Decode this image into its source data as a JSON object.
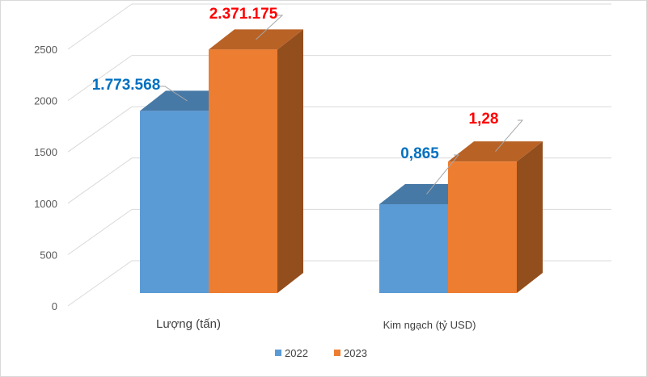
{
  "chart_data": {
    "type": "bar",
    "style": "3d-clustered-column",
    "title": "",
    "categories": [
      "Lượng (tấn)",
      "Kim ngạch (tỷ USD)"
    ],
    "series": [
      {
        "name": "2022",
        "color": "#5B9BD5",
        "values": [
          1773.568,
          0.865
        ],
        "plot_values": [
          1773.568,
          865
        ],
        "labels": [
          "1.773.568",
          "0,865"
        ],
        "label_color": "#0070C0"
      },
      {
        "name": "2023",
        "color": "#ED7D31",
        "values": [
          2371.175,
          1.28
        ],
        "plot_values": [
          2371.175,
          1280
        ],
        "labels": [
          "2.371.175",
          "1,28"
        ],
        "label_color": "#FF0000"
      }
    ],
    "yticks": [
      "0",
      "500",
      "1000",
      "1500",
      "2000",
      "2500"
    ],
    "ylim": [
      0,
      2500
    ],
    "grid": true,
    "legend": "bottom-center"
  }
}
